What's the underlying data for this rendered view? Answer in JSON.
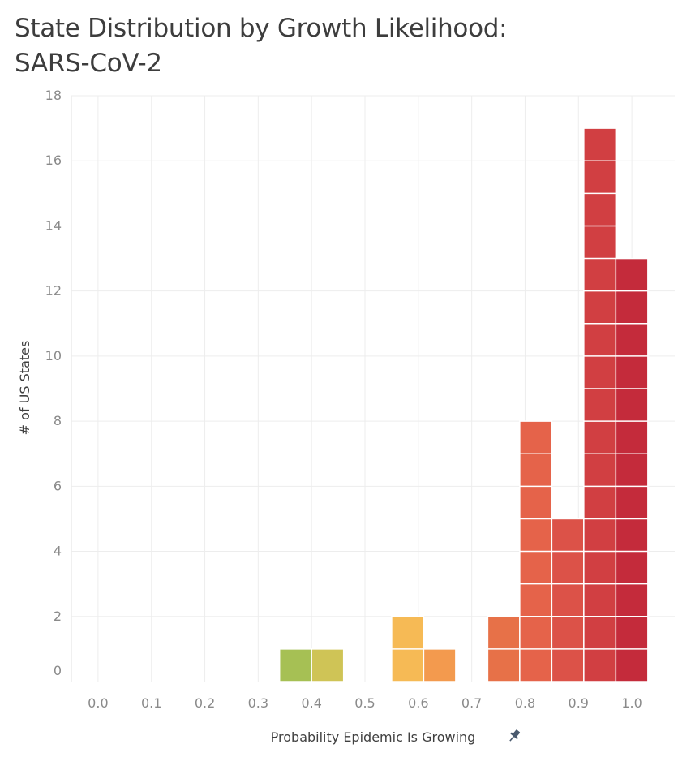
{
  "chart_data": {
    "type": "bar",
    "title": "State Distribution by Growth Likelihood: SARS-CoV-2",
    "title_lines": [
      "State Distribution by Growth Likelihood:",
      "SARS-CoV-2"
    ],
    "xlabel": "Probability Epidemic Is Growing",
    "ylabel": "# of US States",
    "xlim": [
      -0.05,
      1.05
    ],
    "ylim": [
      0,
      18
    ],
    "x_ticks": [
      "0.0",
      "0.1",
      "0.2",
      "0.3",
      "0.4",
      "0.5",
      "0.6",
      "0.7",
      "0.8",
      "0.9",
      "1.0"
    ],
    "y_ticks": [
      "0",
      "2",
      "4",
      "6",
      "8",
      "10",
      "12",
      "14",
      "16",
      "18"
    ],
    "bin_width": 0.06,
    "bins": [
      {
        "x": 0.37,
        "value": 1,
        "color": "#a6c054"
      },
      {
        "x": 0.43,
        "value": 1,
        "color": "#cfc456"
      },
      {
        "x": 0.58,
        "value": 2,
        "color": "#f6ba55"
      },
      {
        "x": 0.64,
        "value": 1,
        "color": "#f39a4e"
      },
      {
        "x": 0.76,
        "value": 2,
        "color": "#e77148"
      },
      {
        "x": 0.82,
        "value": 8,
        "color": "#e5634a"
      },
      {
        "x": 0.88,
        "value": 5,
        "color": "#dc5248"
      },
      {
        "x": 0.94,
        "value": 17,
        "color": "#d13f42"
      },
      {
        "x": 1.0,
        "value": 13,
        "color": "#c42b3b"
      }
    ],
    "grid": true,
    "stacked_units": true
  },
  "icons": {
    "pin": "pin-icon"
  }
}
